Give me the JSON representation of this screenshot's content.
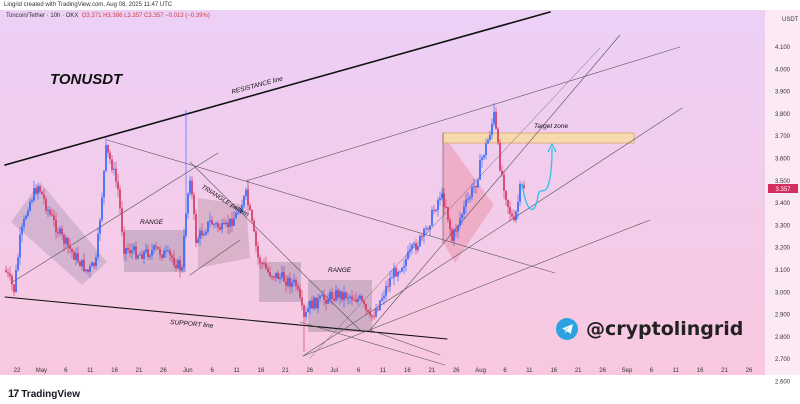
{
  "caption": "Lingrid created with TradingView.com, Aug 08, 2025 11:47 UTC",
  "symbol_line": {
    "name": "Toncoin/Tether · 10h · OKX",
    "ohlc": "O3.371 H3.386 L3.357 C3.357 −0.013 (−0.39%)"
  },
  "currency": "USDT",
  "price_tag": "3.357",
  "chart_data": {
    "type": "candlestick",
    "title": "TONUSDT",
    "price_axis": [
      "4.100",
      "4.000",
      "3.900",
      "3.800",
      "3.700",
      "3.600",
      "3.500",
      "3.400",
      "3.300",
      "3.200",
      "3.100",
      "3.000",
      "2.900",
      "2.800",
      "2.700",
      "2.600"
    ],
    "time_axis": [
      "22",
      "May",
      "6",
      "11",
      "16",
      "21",
      "26",
      "Jun",
      "6",
      "11",
      "16",
      "21",
      "26",
      "Jul",
      "6",
      "11",
      "16",
      "21",
      "26",
      "Aug",
      "6",
      "11",
      "16",
      "21",
      "26",
      "Sep",
      "6",
      "11",
      "16",
      "21",
      "26"
    ],
    "annotations": [
      "RESISTANCE line",
      "SUPPORT line",
      "RANGE",
      "TRIANGLE pattern",
      "RANGE",
      "Target zone"
    ]
  },
  "handle": "@cryptolingrid",
  "footer": "TradingView",
  "colors": {
    "bg_top": "#eac9f3",
    "bg_bottom": "#f8c9e2",
    "up": "#2962ff",
    "down": "#d22f5e",
    "target": "#f7d9b0",
    "arrow": "#31c3e8"
  }
}
